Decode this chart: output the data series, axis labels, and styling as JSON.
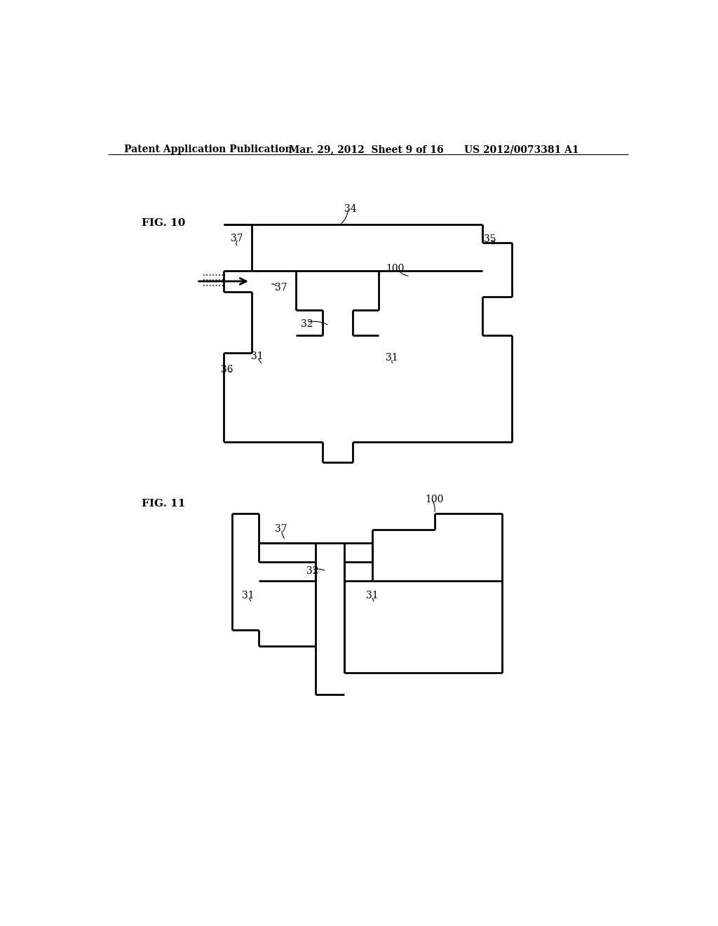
{
  "header_left": "Patent Application Publication",
  "header_mid": "Mar. 29, 2012  Sheet 9 of 16",
  "header_right": "US 2012/0073381 A1",
  "fig10_label": "FIG. 10",
  "fig11_label": "FIG. 11",
  "background": "#ffffff"
}
